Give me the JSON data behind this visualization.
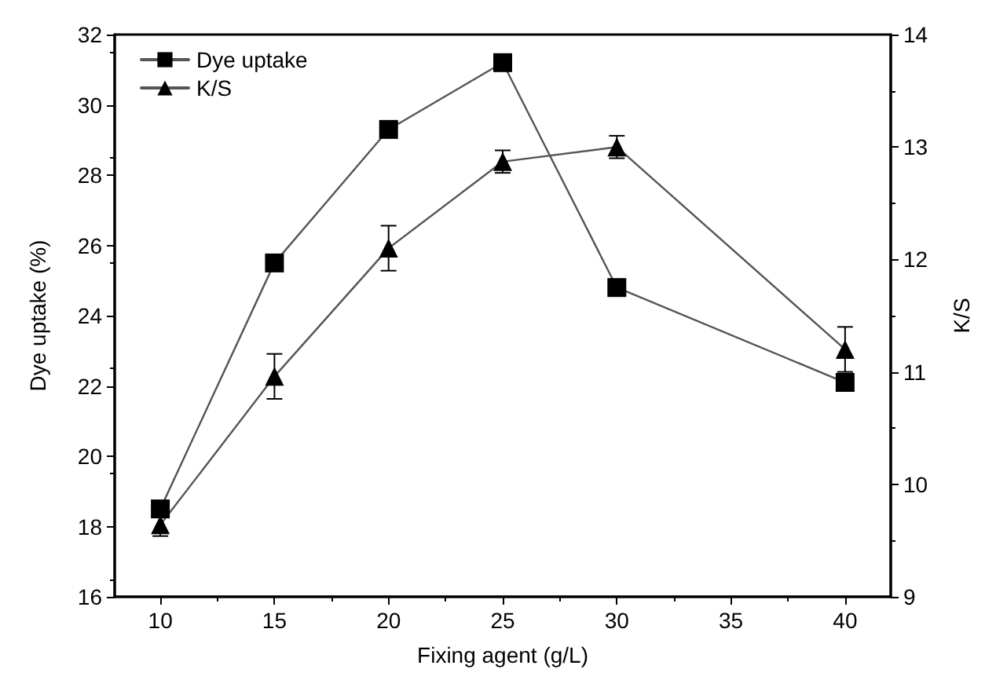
{
  "chart_data": {
    "type": "line",
    "xlabel": "Fixing agent (g/L)",
    "ylabel": "Dye uptake (%)",
    "y2label": "K/S",
    "x": [
      10,
      15,
      20,
      25,
      30,
      40
    ],
    "series": [
      {
        "name": "Dye uptake",
        "color": "#000000",
        "marker": "square",
        "values": [
          18.5,
          25.5,
          29.3,
          31.2,
          24.8,
          22.1
        ]
      },
      {
        "name": "K/S",
        "color": "#000000",
        "marker": "triangle",
        "axis": "y2",
        "values": [
          9.64,
          10.96,
          12.1,
          12.87,
          13.0,
          11.2
        ],
        "errors": [
          0.1,
          0.2,
          0.2,
          0.1,
          0.1,
          0.2
        ]
      }
    ],
    "xlim": [
      8,
      42
    ],
    "xticks": [
      10,
      15,
      20,
      25,
      30,
      35,
      40
    ],
    "ylim": [
      16,
      32
    ],
    "yticks": [
      16,
      18,
      20,
      22,
      24,
      26,
      28,
      30,
      32
    ],
    "y2lim": [
      9,
      14
    ],
    "y2ticks": [
      9,
      10,
      11,
      12,
      13,
      14
    ],
    "legend": "top left",
    "grid": false,
    "line_style": "solid"
  }
}
